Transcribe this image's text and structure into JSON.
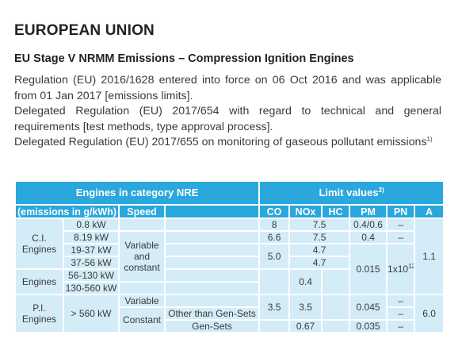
{
  "header": {
    "title": "EUROPEAN UNION",
    "subtitle": "EU Stage V NRMM Emissions – Compression Ignition Engines"
  },
  "paragraphs": [
    {
      "text": "Regulation (EU) 2016/1628 entered into force on 06 Oct 2016 and was applicable from 01 Jan 2017 [emissions limits]."
    },
    {
      "text": "Delegated Regulation (EU) 2017/654 with regard to technical and general requirements [test methods, type approval process]."
    },
    {
      "text": "Delegated Regulation (EU) 2017/655 on monitoring of gaseous pollutant emissions",
      "sup": "1)"
    }
  ],
  "table": {
    "header_row1": [
      {
        "text": "Engines in category NRE"
      },
      {
        "text": "Limit values",
        "sup": "2)"
      }
    ],
    "header_row2": [
      "(emissions in g/kWh)",
      "Speed",
      "CO",
      "NOx",
      "HC",
      "PM",
      "PN",
      "A"
    ],
    "rows": [
      [
        "C.I. Engines",
        "0.8 kW",
        "8",
        "7.5",
        "0.4/0.6",
        "–",
        "1.1"
      ],
      [
        "8.19 kW",
        "Variable and constant",
        "6.6",
        "7.5",
        "0.4",
        "–"
      ],
      [
        "19-37 kW",
        "5.0",
        "4.7",
        "0.015",
        {
          "base": "1x10",
          "sup": "12"
        }
      ],
      [
        "37-56 kW",
        "4.7"
      ],
      [
        "Engines",
        "56-130 kW",
        "0.4"
      ],
      [
        "130-560 kW"
      ],
      [
        "P.I. Engines",
        "> 560 kW",
        "Variable",
        "3.5",
        "3.5",
        "0.045",
        "–",
        "6.0"
      ],
      [
        "Constant",
        "Other than Gen-Sets",
        "–"
      ],
      [
        "Gen-Sets",
        "0.67",
        "0.035",
        "–"
      ]
    ]
  }
}
